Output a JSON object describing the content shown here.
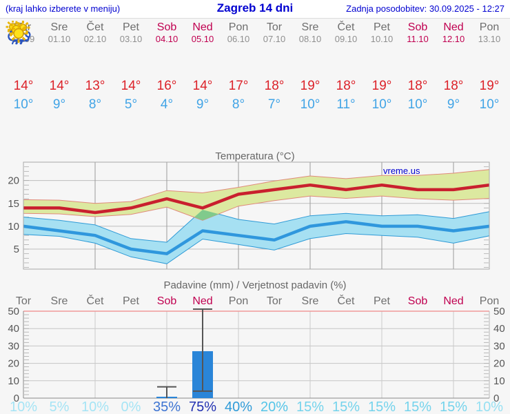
{
  "header": {
    "hint": "(kraj lahko izberete v meniju)",
    "title": "Zagreb 14 dni",
    "updated": "Zadnja posodobitev: 30.09.2025 - 12:27"
  },
  "colors": {
    "link_blue": "#0000d0",
    "day_gray": "#6e6e6e",
    "day_red": "#c00050",
    "high_red": "#dc2229",
    "low_blue": "#41a4e6",
    "bar_blue": "#2a85d8",
    "band_green": "#dce9a0",
    "band_blue": "#a6e0f2",
    "overlap_green": "#80ca8c",
    "line_red": "#c9202e",
    "line_blue": "#2f97dd"
  },
  "forecast": {
    "days": [
      {
        "name": "Tor",
        "date": "30.09",
        "red": false,
        "icon": "cloudy",
        "high": "14°",
        "low": "10°"
      },
      {
        "name": "Sre",
        "date": "01.10",
        "red": false,
        "icon": "partly-cloudy",
        "high": "14°",
        "low": "9°"
      },
      {
        "name": "Čet",
        "date": "02.10",
        "red": false,
        "icon": "partly-cloudy",
        "high": "13°",
        "low": "8°"
      },
      {
        "name": "Pet",
        "date": "03.10",
        "red": false,
        "icon": "sunny",
        "high": "14°",
        "low": "5°"
      },
      {
        "name": "Sob",
        "date": "04.10",
        "red": true,
        "icon": "rain",
        "high": "16°",
        "low": "4°"
      },
      {
        "name": "Ned",
        "date": "05.10",
        "red": true,
        "icon": "sun-rain",
        "high": "14°",
        "low": "9°"
      },
      {
        "name": "Pon",
        "date": "06.10",
        "red": false,
        "icon": "partly-cloudy",
        "high": "17°",
        "low": "8°"
      },
      {
        "name": "Tor",
        "date": "07.10",
        "red": false,
        "icon": "mostly-sunny",
        "high": "18°",
        "low": "7°"
      },
      {
        "name": "Sre",
        "date": "08.10",
        "red": false,
        "icon": "sunny",
        "high": "19°",
        "low": "10°"
      },
      {
        "name": "Čet",
        "date": "09.10",
        "red": false,
        "icon": "sunny",
        "high": "18°",
        "low": "11°"
      },
      {
        "name": "Pet",
        "date": "10.10",
        "red": false,
        "icon": "sunny",
        "high": "19°",
        "low": "10°"
      },
      {
        "name": "Sob",
        "date": "11.10",
        "red": true,
        "icon": "sunny",
        "high": "18°",
        "low": "10°"
      },
      {
        "name": "Ned",
        "date": "12.10",
        "red": true,
        "icon": "sunny",
        "high": "18°",
        "low": "9°"
      },
      {
        "name": "Pon",
        "date": "13.10",
        "red": false,
        "icon": "sunny",
        "high": "19°",
        "low": "10°"
      }
    ]
  },
  "chart_data": [
    {
      "type": "line",
      "title": "Temperatura (°C)",
      "watermark": "vreme.us",
      "ylabel": "°C",
      "ylim": [
        0,
        24
      ],
      "yticks": [
        5,
        10,
        15,
        20
      ],
      "grid": true,
      "gridline_days": [
        3,
        5,
        7,
        9,
        11,
        13
      ],
      "categories": [
        "Tor",
        "Sre",
        "Čet",
        "Pet",
        "Sob",
        "Ned",
        "Pon",
        "Tor",
        "Sre",
        "Čet",
        "Pet",
        "Sob",
        "Ned",
        "Pon"
      ],
      "series": [
        {
          "name": "max-temp",
          "color": "#c9202e",
          "values": [
            14,
            14,
            13,
            14,
            16,
            14,
            17,
            18,
            19,
            18,
            19,
            18,
            18,
            19
          ]
        },
        {
          "name": "min-temp",
          "color": "#2f97dd",
          "values": [
            10,
            9,
            8,
            5,
            4,
            9,
            8,
            7,
            10,
            11,
            10,
            10,
            9,
            10
          ]
        }
      ],
      "bands": [
        {
          "name": "max-band",
          "fill": "#dce9a0",
          "edge": "#e08a7a",
          "upper": [
            15.8,
            15.7,
            15.0,
            15.4,
            17.8,
            17.3,
            18.5,
            19.9,
            21.0,
            20.4,
            21.1,
            21.1,
            21.6,
            22.4
          ],
          "lower": [
            12.8,
            12.7,
            12.1,
            12.6,
            14.2,
            11.3,
            14.4,
            15.6,
            16.6,
            16.1,
            16.6,
            16.0,
            15.7,
            16.1
          ]
        },
        {
          "name": "min-band",
          "fill": "#a6e0f2",
          "edge": "#2e9ad6",
          "upper": [
            12.0,
            11.3,
            10.3,
            7.3,
            6.5,
            13.6,
            11.5,
            10.5,
            12.3,
            12.8,
            12.3,
            12.5,
            11.7,
            13.2
          ],
          "lower": [
            8.2,
            7.8,
            6.3,
            3.3,
            1.8,
            7.2,
            6.0,
            4.8,
            7.3,
            8.4,
            8.0,
            7.6,
            6.3,
            7.9
          ]
        }
      ],
      "overlap_polygon": [
        [
          5.77,
          12.0
        ],
        [
          6,
          13.6
        ],
        [
          6.45,
          12.65
        ],
        [
          6,
          11.3
        ]
      ],
      "overlap_color": "#80ca8c"
    },
    {
      "type": "bar",
      "title": "Padavine (mm) / Verjetnost padavin (%)",
      "ylim": [
        0,
        50
      ],
      "yticks": [
        0,
        10,
        20,
        30,
        40,
        50
      ],
      "grid": true,
      "gridline_days": [
        3,
        5,
        7,
        9,
        11,
        13
      ],
      "categories": [
        "Tor",
        "Sre",
        "Čet",
        "Pet",
        "Sob",
        "Ned",
        "Pon",
        "Tor",
        "Sre",
        "Čet",
        "Pet",
        "Sob",
        "Ned",
        "Pon"
      ],
      "red_days": [
        false,
        false,
        false,
        false,
        true,
        true,
        false,
        false,
        false,
        false,
        false,
        true,
        true,
        false
      ],
      "values": [
        0,
        0,
        0,
        0,
        0.8,
        27,
        0,
        0,
        0,
        0,
        0,
        0,
        0,
        0
      ],
      "bar_color": "#2a85d8",
      "whiskers": [
        null,
        null,
        null,
        null,
        {
          "lo": 0,
          "hi": 6.5
        },
        {
          "lo": 4,
          "hi": 51.5
        },
        null,
        null,
        null,
        null,
        null,
        null,
        null,
        null
      ],
      "probability": [
        "10%",
        "5%",
        "10%",
        "0%",
        "35%",
        "75%",
        "40%",
        "20%",
        "15%",
        "15%",
        "15%",
        "15%",
        "15%",
        "10%"
      ],
      "probability_colors": [
        "#a5e4f5",
        "#a5e4f5",
        "#a5e4f5",
        "#a5e4f5",
        "#3d74d2",
        "#2231b2",
        "#2f9bd8",
        "#54c5e8",
        "#74d3ec",
        "#74d3ec",
        "#74d3ec",
        "#74d3ec",
        "#74d3ec",
        "#96e0f2"
      ]
    }
  ]
}
